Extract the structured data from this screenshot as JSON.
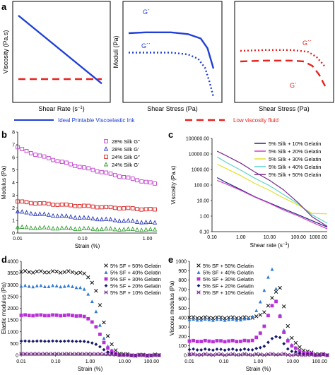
{
  "panels": {
    "a": "a",
    "b": "b",
    "c": "c",
    "d": "d",
    "e": "e"
  },
  "chart_data": [
    {
      "id": "a1",
      "type": "line",
      "xlabel": "Shear Rate (s",
      "xlabel_sup": "−1",
      "xlabel_end": ")",
      "ylabel": "Viscosity (Pa.s)",
      "series": [
        {
          "name": "Ideal Printable Viscoelastic Ink",
          "color": "#1f3fd6",
          "style": "solid",
          "x": [
            0,
            1
          ],
          "y": [
            0.92,
            0.15
          ]
        },
        {
          "name": "Low viscosity fluid",
          "color": "#e8221e",
          "style": "dashed",
          "x": [
            0,
            1
          ],
          "y": [
            0.2,
            0.2
          ]
        }
      ]
    },
    {
      "id": "a2",
      "type": "line",
      "xlabel": "Shear Stress (Pa)",
      "ylabel": "Moduli (Pa)",
      "annotations": [
        "G´",
        "G´´"
      ],
      "series": [
        {
          "name": "G´",
          "color": "#1f3fd6",
          "style": "solid",
          "x": [
            0,
            0.2,
            0.5,
            0.7,
            0.85,
            0.93,
            1
          ],
          "y": [
            0.72,
            0.73,
            0.73,
            0.71,
            0.66,
            0.55,
            0.32
          ]
        },
        {
          "name": "G´´",
          "color": "#1f3fd6",
          "style": "dotted",
          "x": [
            0,
            0.2,
            0.5,
            0.7,
            0.82,
            0.9,
            0.95,
            1
          ],
          "y": [
            0.5,
            0.5,
            0.5,
            0.48,
            0.43,
            0.33,
            0.18,
            0.0
          ]
        }
      ]
    },
    {
      "id": "a3",
      "type": "line",
      "xlabel": "Shear Stress (Pa)",
      "annotations": [
        "G´´",
        "G´"
      ],
      "series": [
        {
          "name": "G´´",
          "color": "#e8221e",
          "style": "dotted",
          "x": [
            0,
            0.3,
            0.6,
            0.8,
            0.9,
            1
          ],
          "y": [
            0.52,
            0.53,
            0.53,
            0.51,
            0.45,
            0.34
          ]
        },
        {
          "name": "G´",
          "color": "#e8221e",
          "style": "dashed",
          "x": [
            0,
            0.3,
            0.6,
            0.75,
            0.85,
            0.93,
            1
          ],
          "y": [
            0.4,
            0.41,
            0.41,
            0.4,
            0.35,
            0.25,
            0.12
          ]
        }
      ]
    },
    {
      "id": "b",
      "type": "scatter",
      "xlabel": "Strain (%)",
      "ylabel": "Modulus (Pa)",
      "xscale": "log",
      "xlim": [
        0.01,
        1.4
      ],
      "ylim": [
        0,
        8
      ],
      "xticks": [
        0.01,
        0.1,
        1
      ],
      "xticklabels": [
        "0.01",
        "0.10",
        "1.00"
      ],
      "yticks": [
        0,
        1,
        2,
        3,
        4,
        5,
        6,
        7,
        8
      ],
      "legend_position": "top-right",
      "series": [
        {
          "name": "28% Silk G″",
          "marker": "square",
          "color": "#c23ecf",
          "start": 6.8,
          "end": 3.9
        },
        {
          "name": "28% Silk G′",
          "marker": "triangle",
          "color": "#2433b8",
          "start": 1.7,
          "end": 0.8
        },
        {
          "name": "24% Silk G″",
          "marker": "square",
          "color": "#d62020",
          "start": 2.5,
          "end": 1.85
        },
        {
          "name": "24% Silk G′",
          "marker": "triangle",
          "color": "#2e9e2e",
          "start": 0.45,
          "end": 0.25
        }
      ]
    },
    {
      "id": "c",
      "type": "line",
      "xlabel": "Shear rate (s",
      "xlabel_sup": "−1",
      "xlabel_end": ")",
      "ylabel": "Viscosity (Pa.s)",
      "xscale": "log",
      "yscale": "log",
      "xlim": [
        0.1,
        1000
      ],
      "ylim": [
        0.1,
        100000
      ],
      "xticks": [
        0.1,
        1,
        10,
        100,
        1000
      ],
      "xticklabels": [
        "0.10",
        "1.00",
        "10.00",
        "100.00",
        "1000.00"
      ],
      "yticks": [
        0.1,
        1,
        10,
        100,
        1000,
        10000,
        100000
      ],
      "yticklabels": [
        "0.10",
        "1.00",
        "10.00",
        "100.00",
        "1000.00",
        "10000.00",
        "100000.00"
      ],
      "legend_position": "top-right",
      "series": [
        {
          "name": "5% Silk + 10% Gelatin",
          "color": "#23237a",
          "x": [
            0.15,
            0.3,
            1,
            3,
            10,
            30,
            100,
            300,
            1000
          ],
          "y": [
            300,
            150,
            50,
            18,
            7,
            3,
            1.2,
            0.5,
            0.2
          ]
        },
        {
          "name": "5% Silk + 20% Gelatin",
          "color": "#d23ecb",
          "x": [
            0.15,
            0.3,
            1,
            3,
            10,
            30,
            100,
            300,
            1000
          ],
          "y": [
            200,
            120,
            45,
            17,
            6.5,
            2.5,
            1.0,
            0.4,
            0.15
          ]
        },
        {
          "name": "5% Silk + 30% Gelatin",
          "color": "#e3e026",
          "x": [
            0.15,
            0.3,
            1,
            3,
            10,
            30,
            100,
            300,
            1000
          ],
          "y": [
            2200,
            1200,
            400,
            130,
            45,
            15,
            5,
            1.5,
            1.4
          ]
        },
        {
          "name": "5% Silk + 40% Gelatin",
          "color": "#5ad6c8",
          "x": [
            0.15,
            0.3,
            1,
            3,
            10,
            30,
            100,
            300,
            1000
          ],
          "y": [
            6500,
            3000,
            900,
            280,
            90,
            25,
            6,
            1.2,
            0.35
          ]
        },
        {
          "name": "5% Silk + 50% Gelatin",
          "color": "#7a2a8e",
          "x": [
            0.15,
            0.3,
            1,
            3,
            10,
            30,
            100,
            300,
            1000
          ],
          "y": [
            15000,
            8000,
            2500,
            700,
            200,
            50,
            7,
            0.9,
            0.22
          ]
        }
      ]
    },
    {
      "id": "d",
      "type": "scatter",
      "xlabel": "Strain (%)",
      "ylabel": "Elastic modulus (Pa)",
      "xscale": "log",
      "xlim": [
        0.01,
        100
      ],
      "ylim": [
        0,
        4000
      ],
      "xticks": [
        0.01,
        0.1,
        1,
        10,
        100
      ],
      "xticklabels": [
        "0.01",
        "0.10",
        "1.00",
        "10.00",
        "100.00"
      ],
      "yticks": [
        0,
        500,
        1000,
        1500,
        2000,
        2500,
        3000,
        3500,
        4000
      ],
      "legend_position": "top-right",
      "series": [
        {
          "name": "5% SF + 50% Gelatin",
          "marker": "x",
          "color": "#111111",
          "plateau": 3550,
          "knee": 1.0
        },
        {
          "name": "5% SF + 40% Gelatin",
          "marker": "triangle",
          "color": "#2f7ad1",
          "plateau": 2950,
          "knee": 0.8
        },
        {
          "name": "5% SF + 30% Gelatin",
          "marker": "square",
          "color": "#b930d6",
          "plateau": 1700,
          "knee": 0.9
        },
        {
          "name": "5% SF + 20% Gelatin",
          "marker": "diamond",
          "color": "#141a6b",
          "plateau": 600,
          "knee": 1.0
        },
        {
          "name": "5% SF + 10% Gelatin",
          "marker": "xstar",
          "color": "#7a2a8e",
          "plateau": 60,
          "knee": 2.0
        }
      ]
    },
    {
      "id": "e",
      "type": "scatter",
      "xlabel": "Strain (%)",
      "ylabel": "Viscous modulus (Pa)",
      "xscale": "log",
      "xlim": [
        0.01,
        100
      ],
      "ylim": [
        0,
        1000
      ],
      "xticks": [
        0.01,
        0.1,
        1,
        10,
        100
      ],
      "xticklabels": [
        "0.01",
        "0.10",
        "1.00",
        "10.00",
        "100.00"
      ],
      "yticks": [
        0,
        100,
        200,
        300,
        400,
        500,
        600,
        700,
        800,
        900,
        1000
      ],
      "legend_position": "top-right",
      "series": [
        {
          "name": "5% SF + 50% Gelatin",
          "marker": "x",
          "color": "#111111",
          "base": 400,
          "peak": 720,
          "peakx": 4.5
        },
        {
          "name": "5% SF + 40% Gelatin",
          "marker": "triangle",
          "color": "#2f7ad1",
          "base": 380,
          "peak": 920,
          "peakx": 2.8
        },
        {
          "name": "5% SF + 30% Gelatin",
          "marker": "square",
          "color": "#b930d6",
          "base": 150,
          "peak": 580,
          "peakx": 3.5
        },
        {
          "name": "5% SF + 20% Gelatin",
          "marker": "diamond",
          "color": "#141a6b",
          "base": 60,
          "peak": 210,
          "peakx": 4.0
        },
        {
          "name": "5% SF + 10% Gelatin",
          "marker": "xstar",
          "color": "#7a2a8e",
          "base": 8,
          "peak": 12,
          "peakx": 5.0
        }
      ]
    }
  ]
}
